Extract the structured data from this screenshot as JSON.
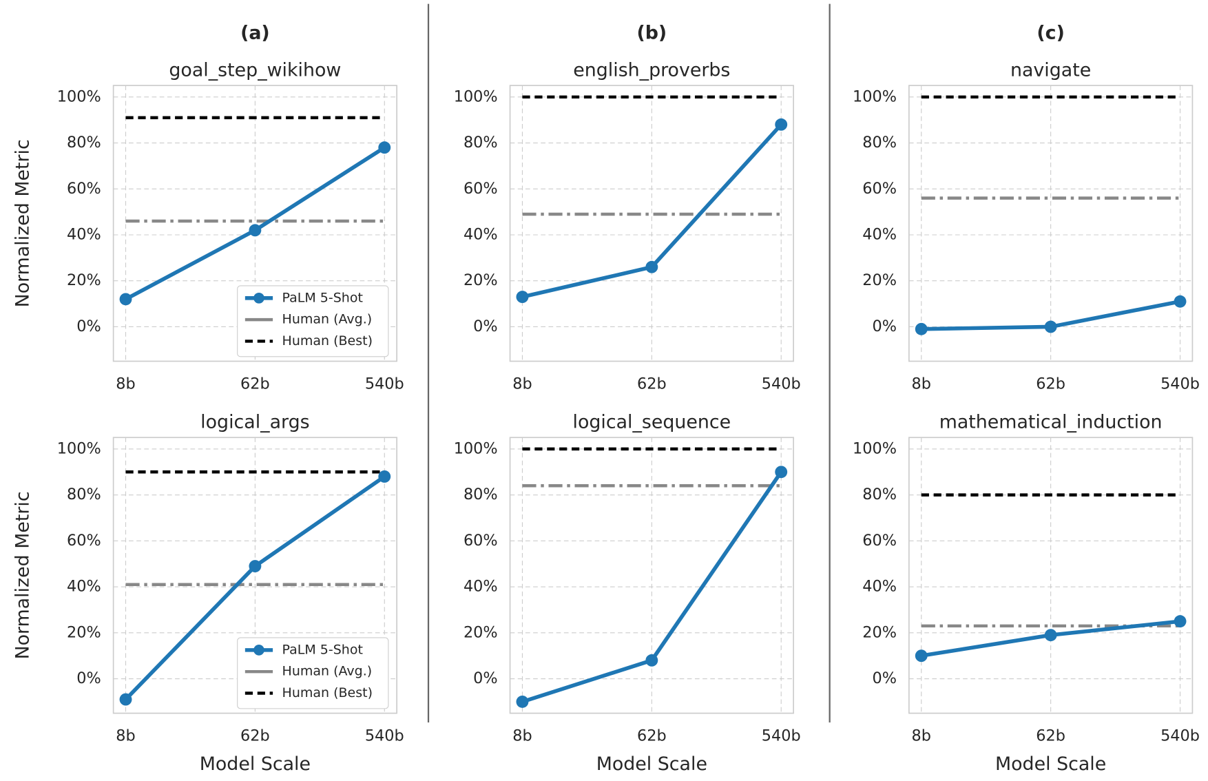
{
  "chart_data": [
    {
      "type": "line",
      "panel_label": "(a)",
      "title": "goal_step_wikihow",
      "ylabel": "Normalized Metric",
      "legend": "lower right",
      "categories": [
        "8b",
        "62b",
        "540b"
      ],
      "series": [
        {
          "name": "PaLM 5-Shot",
          "color": "#1f77b4",
          "values": [
            12,
            42,
            78
          ]
        },
        {
          "name": "Human (Avg.)",
          "color": "#888888",
          "values": [
            46,
            46,
            46
          ]
        },
        {
          "name": "Human (Best)",
          "color": "#000000",
          "values": [
            91,
            91,
            91
          ]
        }
      ],
      "ylim": [
        -15,
        105
      ],
      "yticks": [
        {
          "value": 0,
          "label": "0%"
        },
        {
          "value": 20,
          "label": "20%"
        },
        {
          "value": 40,
          "label": "40%"
        },
        {
          "value": 60,
          "label": "60%"
        },
        {
          "value": 80,
          "label": "80%"
        },
        {
          "value": 100,
          "label": "100%"
        }
      ],
      "grid": true
    },
    {
      "type": "line",
      "panel_label": "(b)",
      "title": "english_proverbs",
      "categories": [
        "8b",
        "62b",
        "540b"
      ],
      "series": [
        {
          "name": "PaLM 5-Shot",
          "color": "#1f77b4",
          "values": [
            13,
            26,
            88
          ]
        },
        {
          "name": "Human (Avg.)",
          "color": "#888888",
          "values": [
            49,
            49,
            49
          ]
        },
        {
          "name": "Human (Best)",
          "color": "#000000",
          "values": [
            100,
            100,
            100
          ]
        }
      ],
      "ylim": [
        -15,
        105
      ],
      "yticks": [
        {
          "value": 0,
          "label": "0%"
        },
        {
          "value": 20,
          "label": "20%"
        },
        {
          "value": 40,
          "label": "40%"
        },
        {
          "value": 60,
          "label": "60%"
        },
        {
          "value": 80,
          "label": "80%"
        },
        {
          "value": 100,
          "label": "100%"
        }
      ],
      "grid": true
    },
    {
      "type": "line",
      "panel_label": "(c)",
      "title": "navigate",
      "categories": [
        "8b",
        "62b",
        "540b"
      ],
      "series": [
        {
          "name": "PaLM 5-Shot",
          "color": "#1f77b4",
          "values": [
            -1,
            0,
            11
          ]
        },
        {
          "name": "Human (Avg.)",
          "color": "#888888",
          "values": [
            56,
            56,
            56
          ]
        },
        {
          "name": "Human (Best)",
          "color": "#000000",
          "values": [
            100,
            100,
            100
          ]
        }
      ],
      "ylim": [
        -15,
        105
      ],
      "yticks": [
        {
          "value": 0,
          "label": "0%"
        },
        {
          "value": 20,
          "label": "20%"
        },
        {
          "value": 40,
          "label": "40%"
        },
        {
          "value": 60,
          "label": "60%"
        },
        {
          "value": 80,
          "label": "80%"
        },
        {
          "value": 100,
          "label": "100%"
        }
      ],
      "grid": true
    },
    {
      "type": "line",
      "title": "logical_args",
      "ylabel": "Normalized Metric",
      "xlabel": "Model Scale",
      "legend": "lower right",
      "categories": [
        "8b",
        "62b",
        "540b"
      ],
      "series": [
        {
          "name": "PaLM 5-Shot",
          "color": "#1f77b4",
          "values": [
            -9,
            49,
            88
          ]
        },
        {
          "name": "Human (Avg.)",
          "color": "#888888",
          "values": [
            41,
            41,
            41
          ]
        },
        {
          "name": "Human (Best)",
          "color": "#000000",
          "values": [
            90,
            90,
            90
          ]
        }
      ],
      "ylim": [
        -15,
        105
      ],
      "yticks": [
        {
          "value": 0,
          "label": "0%"
        },
        {
          "value": 20,
          "label": "20%"
        },
        {
          "value": 40,
          "label": "40%"
        },
        {
          "value": 60,
          "label": "60%"
        },
        {
          "value": 80,
          "label": "80%"
        },
        {
          "value": 100,
          "label": "100%"
        }
      ],
      "grid": true
    },
    {
      "type": "line",
      "title": "logical_sequence",
      "xlabel": "Model Scale",
      "categories": [
        "8b",
        "62b",
        "540b"
      ],
      "series": [
        {
          "name": "PaLM 5-Shot",
          "color": "#1f77b4",
          "values": [
            -10,
            8,
            90
          ]
        },
        {
          "name": "Human (Avg.)",
          "color": "#888888",
          "values": [
            84,
            84,
            84
          ]
        },
        {
          "name": "Human (Best)",
          "color": "#000000",
          "values": [
            100,
            100,
            100
          ]
        }
      ],
      "ylim": [
        -15,
        105
      ],
      "yticks": [
        {
          "value": 0,
          "label": "0%"
        },
        {
          "value": 20,
          "label": "20%"
        },
        {
          "value": 40,
          "label": "40%"
        },
        {
          "value": 60,
          "label": "60%"
        },
        {
          "value": 80,
          "label": "80%"
        },
        {
          "value": 100,
          "label": "100%"
        }
      ],
      "grid": true
    },
    {
      "type": "line",
      "title": "mathematical_induction",
      "xlabel": "Model Scale",
      "categories": [
        "8b",
        "62b",
        "540b"
      ],
      "series": [
        {
          "name": "PaLM 5-Shot",
          "color": "#1f77b4",
          "values": [
            10,
            19,
            25
          ]
        },
        {
          "name": "Human (Avg.)",
          "color": "#888888",
          "values": [
            23,
            23,
            23
          ]
        },
        {
          "name": "Human (Best)",
          "color": "#000000",
          "values": [
            80,
            80,
            80
          ]
        }
      ],
      "ylim": [
        -15,
        105
      ],
      "yticks": [
        {
          "value": 0,
          "label": "0%"
        },
        {
          "value": 20,
          "label": "20%"
        },
        {
          "value": 40,
          "label": "40%"
        },
        {
          "value": 60,
          "label": "60%"
        },
        {
          "value": 80,
          "label": "80%"
        },
        {
          "value": 100,
          "label": "100%"
        }
      ],
      "grid": true
    }
  ]
}
